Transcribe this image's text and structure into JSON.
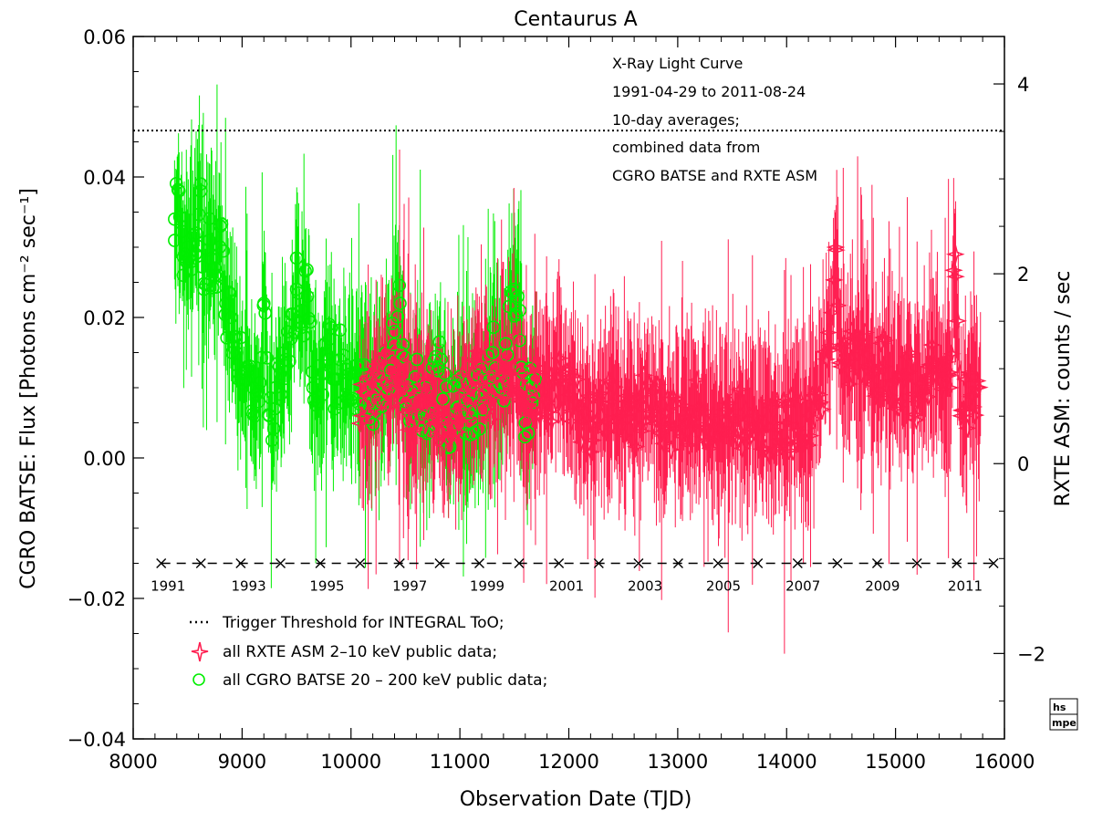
{
  "chart_data": {
    "type": "scatter",
    "title": "Centaurus A",
    "xlabel": "Observation Date (TJD)",
    "ylabel_left": "CGRO BATSE: Flux [Photons cm⁻² sec⁻¹]",
    "ylabel_right": "RXTE ASM:  counts / sec",
    "xlim": [
      8000,
      16000
    ],
    "ylim_left": [
      -0.04,
      0.06
    ],
    "ylim_right": [
      -2.9,
      4.5
    ],
    "x_ticks": [
      "8000",
      "9000",
      "10000",
      "11000",
      "12000",
      "13000",
      "14000",
      "15000",
      "16000"
    ],
    "y_ticks_left": [
      "0.06",
      "0.04",
      "0.02",
      "0.00",
      "−0.02",
      "−0.04"
    ],
    "y_ticks_right": [
      "4",
      "2",
      "0",
      "−2"
    ],
    "annotation_lines": [
      "X-Ray Light Curve",
      "1991-04-29 to 2011-08-24",
      "10-day averages;",
      "combined data from",
      "CGRO BATSE and RXTE ASM"
    ],
    "threshold": {
      "y": 0.0466,
      "label": "Trigger Threshold for INTEGRAL ToO;"
    },
    "year_markers": {
      "y": -0.015,
      "tjd": [
        8257,
        8622,
        8987,
        9353,
        9718,
        10083,
        10448,
        10814,
        11179,
        11544,
        11909,
        12275,
        12640,
        13005,
        13370,
        13736,
        14101,
        14466,
        14831,
        15197,
        15562,
        15900
      ],
      "labels": [
        "1991",
        "1993",
        "1995",
        "1997",
        "1999",
        "2001",
        "2003",
        "2005",
        "2007",
        "2009",
        "2011"
      ],
      "label_tjd": [
        8320,
        9060,
        9780,
        10540,
        11250,
        11980,
        12700,
        13420,
        14150,
        14880,
        15640
      ]
    },
    "series": [
      {
        "name": "all CGRO BATSE 20 – 200 keV public data;",
        "marker": "circle",
        "color": "#00ee00",
        "x_range": [
          8380,
          11700
        ],
        "points": [
          [
            8380,
            0.034
          ],
          [
            8420,
            0.038
          ],
          [
            8460,
            0.026
          ],
          [
            8500,
            0.03
          ],
          [
            8540,
            0.028
          ],
          [
            8580,
            0.032
          ],
          [
            8620,
            0.039
          ],
          [
            8650,
            0.024
          ],
          [
            8700,
            0.031
          ],
          [
            8750,
            0.026
          ],
          [
            8800,
            0.033
          ],
          [
            8850,
            0.022
          ],
          [
            8900,
            0.02
          ],
          [
            8950,
            0.015
          ],
          [
            9000,
            0.012
          ],
          [
            9050,
            0.013
          ],
          [
            9100,
            0.01
          ],
          [
            9150,
            0.008
          ],
          [
            9200,
            0.022
          ],
          [
            9250,
            0.006
          ],
          [
            9300,
            0.007
          ],
          [
            9350,
            0.012
          ],
          [
            9400,
            0.014
          ],
          [
            9450,
            0.017
          ],
          [
            9500,
            0.024
          ],
          [
            9550,
            0.021
          ],
          [
            9600,
            0.023
          ],
          [
            9650,
            0.01
          ],
          [
            9700,
            0.008
          ],
          [
            9750,
            0.012
          ],
          [
            9800,
            0.019
          ],
          [
            9850,
            0.007
          ],
          [
            9900,
            0.014
          ],
          [
            9950,
            0.009
          ],
          [
            10000,
            0.012
          ],
          [
            10100,
            0.01
          ],
          [
            10200,
            0.009
          ],
          [
            10300,
            0.011
          ],
          [
            10400,
            0.018
          ],
          [
            10450,
            0.022
          ],
          [
            10500,
            0.008
          ],
          [
            10600,
            0.01
          ],
          [
            10700,
            0.006
          ],
          [
            10800,
            0.013
          ],
          [
            10900,
            0.005
          ],
          [
            11000,
            0.01
          ],
          [
            11100,
            0.006
          ],
          [
            11200,
            0.009
          ],
          [
            11300,
            0.015
          ],
          [
            11400,
            0.011
          ],
          [
            11500,
            0.024
          ],
          [
            11550,
            0.021
          ],
          [
            11600,
            0.005
          ],
          [
            11650,
            0.01
          ]
        ]
      },
      {
        "name": "all RXTE ASM 2–10 keV public data;",
        "marker": "star",
        "color": "#ff1e50",
        "x_range": [
          10080,
          15780
        ],
        "points": [
          [
            10100,
            0.006
          ],
          [
            10200,
            0.009
          ],
          [
            10300,
            0.011
          ],
          [
            10400,
            0.012
          ],
          [
            10500,
            0.009
          ],
          [
            10600,
            0.007
          ],
          [
            10700,
            0.008
          ],
          [
            10800,
            0.006
          ],
          [
            10900,
            0.005
          ],
          [
            11000,
            0.007
          ],
          [
            11100,
            0.01
          ],
          [
            11200,
            0.012
          ],
          [
            11300,
            0.009
          ],
          [
            11400,
            0.011
          ],
          [
            11500,
            0.013
          ],
          [
            11600,
            0.007
          ],
          [
            11700,
            0.01
          ],
          [
            11800,
            0.008
          ],
          [
            11900,
            0.011
          ],
          [
            12000,
            0.009
          ],
          [
            12100,
            0.007
          ],
          [
            12200,
            0.005
          ],
          [
            12300,
            0.006
          ],
          [
            12400,
            0.008
          ],
          [
            12500,
            0.007
          ],
          [
            12600,
            0.005
          ],
          [
            12700,
            0.009
          ],
          [
            12800,
            0.007
          ],
          [
            12900,
            0.004
          ],
          [
            13000,
            0.005
          ],
          [
            13100,
            0.006
          ],
          [
            13200,
            0.007
          ],
          [
            13300,
            0.005
          ],
          [
            13400,
            0.004
          ],
          [
            13500,
            0.006
          ],
          [
            13600,
            0.005
          ],
          [
            13700,
            0.006
          ],
          [
            13800,
            0.005
          ],
          [
            13900,
            0.004
          ],
          [
            14000,
            0.005
          ],
          [
            14100,
            0.004
          ],
          [
            14200,
            0.006
          ],
          [
            14300,
            0.009
          ],
          [
            14400,
            0.016
          ],
          [
            14450,
            0.03
          ],
          [
            14500,
            0.013
          ],
          [
            14600,
            0.014
          ],
          [
            14700,
            0.016
          ],
          [
            14800,
            0.012
          ],
          [
            14900,
            0.013
          ],
          [
            15000,
            0.011
          ],
          [
            15100,
            0.012
          ],
          [
            15200,
            0.008
          ],
          [
            15300,
            0.013
          ],
          [
            15400,
            0.013
          ],
          [
            15500,
            0.01
          ],
          [
            15550,
            0.029
          ],
          [
            15600,
            0.006
          ],
          [
            15700,
            0.009
          ],
          [
            15750,
            0.01
          ]
        ]
      }
    ],
    "legend_position": "bottom-left"
  }
}
